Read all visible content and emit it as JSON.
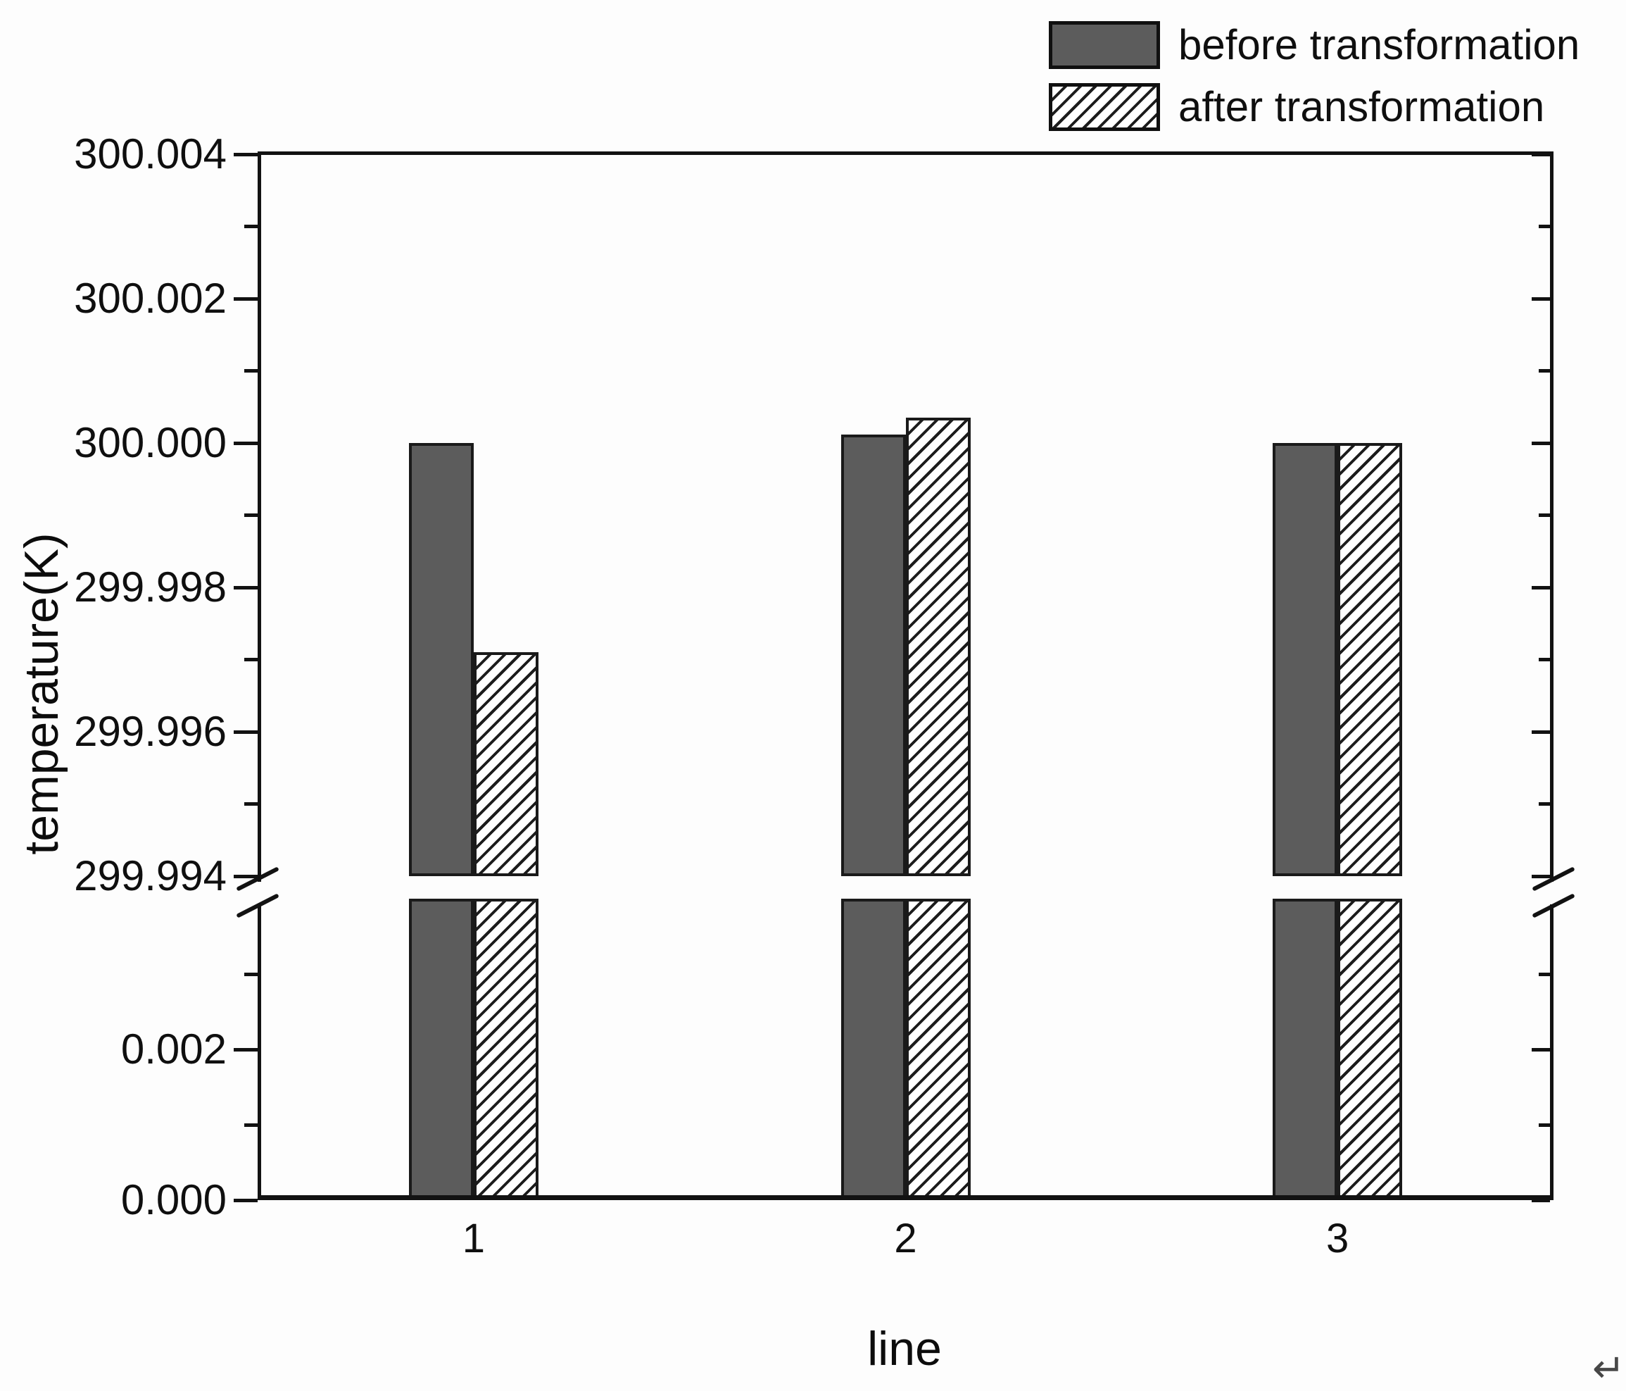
{
  "chart_data": {
    "type": "bar",
    "title": "",
    "xlabel": "line",
    "ylabel": "temperature(K)",
    "categories": [
      "1",
      "2",
      "3"
    ],
    "series": [
      {
        "name": "before transformation",
        "pattern": "solid",
        "fill": "#5c5c5c",
        "values": [
          300.0,
          300.00012,
          300.0
        ]
      },
      {
        "name": "after transformation",
        "pattern": "hatch-diagonal",
        "fill": "#ffffff",
        "values": [
          299.9971,
          300.00035,
          300.0
        ]
      }
    ],
    "y_axis": {
      "broken": true,
      "upper": {
        "range": [
          299.994,
          300.004
        ],
        "major_tick_labels": [
          "300.004",
          "300.002",
          "300.000",
          "299.998",
          "299.996",
          "299.994"
        ],
        "minor_ticks": [
          300.003,
          300.001,
          299.999,
          299.997,
          299.995
        ]
      },
      "lower": {
        "range": [
          0.0,
          0.004
        ],
        "major_tick_labels": [
          "0.002",
          "0.000"
        ],
        "minor_ticks": [
          0.003,
          0.001
        ]
      }
    },
    "legend": {
      "position": "top-right"
    },
    "grid": false,
    "colors": {
      "axis": "#121212",
      "text": "#0f0f0f",
      "bar_border": "#1a1a1a",
      "hatch_line": "#1c1c1c",
      "background": "#fdfdfd"
    }
  },
  "decorations": {
    "return_symbol": "↵"
  }
}
